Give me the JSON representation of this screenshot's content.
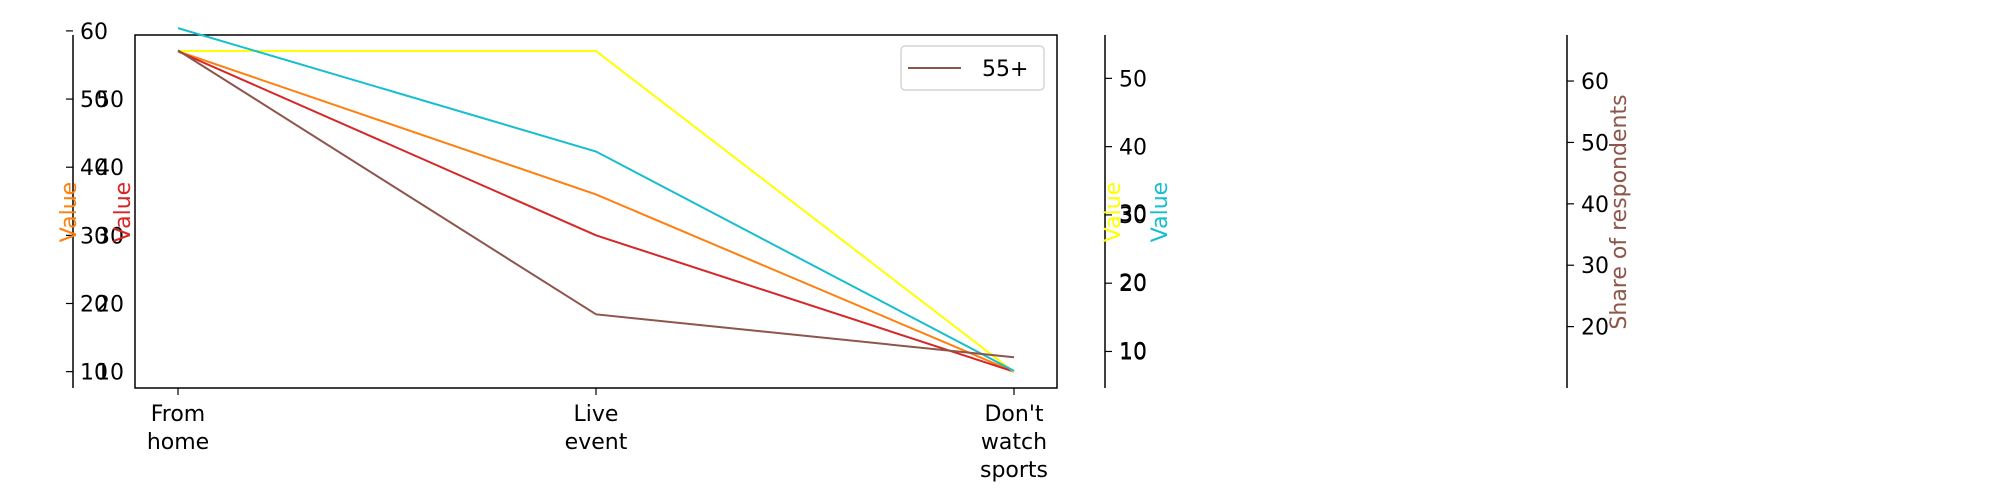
{
  "chart_data": {
    "type": "line",
    "categories": [
      "From home",
      "Live event",
      "Don't watch sports"
    ],
    "category_lines": [
      [
        "From",
        "home"
      ],
      [
        "Live",
        "event"
      ],
      [
        "Don't",
        "watch",
        "sports"
      ]
    ],
    "series": [
      {
        "name": "",
        "color": "#ff7f0e",
        "values": [
          57,
          36,
          10
        ],
        "axis": "orange"
      },
      {
        "name": "",
        "color": "#d62728",
        "values": [
          57,
          30,
          10
        ],
        "axis": "red"
      },
      {
        "name": "",
        "color": "#ffff00",
        "values": [
          54,
          54,
          7
        ],
        "axis": "yellow"
      },
      {
        "name": "",
        "color": "#17becf",
        "values": [
          57,
          39,
          7
        ],
        "axis": "cyan"
      },
      {
        "name": "55+",
        "color": "#8c564b",
        "values": [
          65,
          22,
          15
        ],
        "axis": "brown"
      }
    ],
    "axes": {
      "orange": {
        "label": "Value",
        "color": "#ff7f0e",
        "ylim": [
          7.6,
          59.4
        ],
        "ticks": [
          10,
          20,
          30,
          40,
          50,
          60
        ],
        "side": "left"
      },
      "red": {
        "label": "Value",
        "color": "#d62728",
        "ylim": [
          7.6,
          59.4
        ],
        "ticks": [
          10,
          20,
          30,
          40,
          50
        ],
        "side": "left"
      },
      "yellow": {
        "label": "Value",
        "color": "#ffff00",
        "ylim": [
          4.65,
          56.35
        ],
        "ticks": [
          10,
          20,
          30,
          40,
          50
        ],
        "side": "right"
      },
      "cyan": {
        "label": "Value",
        "color": "#17becf",
        "ylim": [
          4.5,
          56.0
        ],
        "ticks": [
          10,
          20,
          30
        ],
        "side": "right"
      },
      "brown": {
        "label": "Share of respondents",
        "color": "#8c564b",
        "ylim": [
          10.0,
          67.5
        ],
        "ticks": [
          20,
          30,
          40,
          50,
          60
        ],
        "side": "right"
      }
    },
    "legend": {
      "entries": [
        "55+"
      ],
      "position": "top-right"
    },
    "grid": false
  }
}
